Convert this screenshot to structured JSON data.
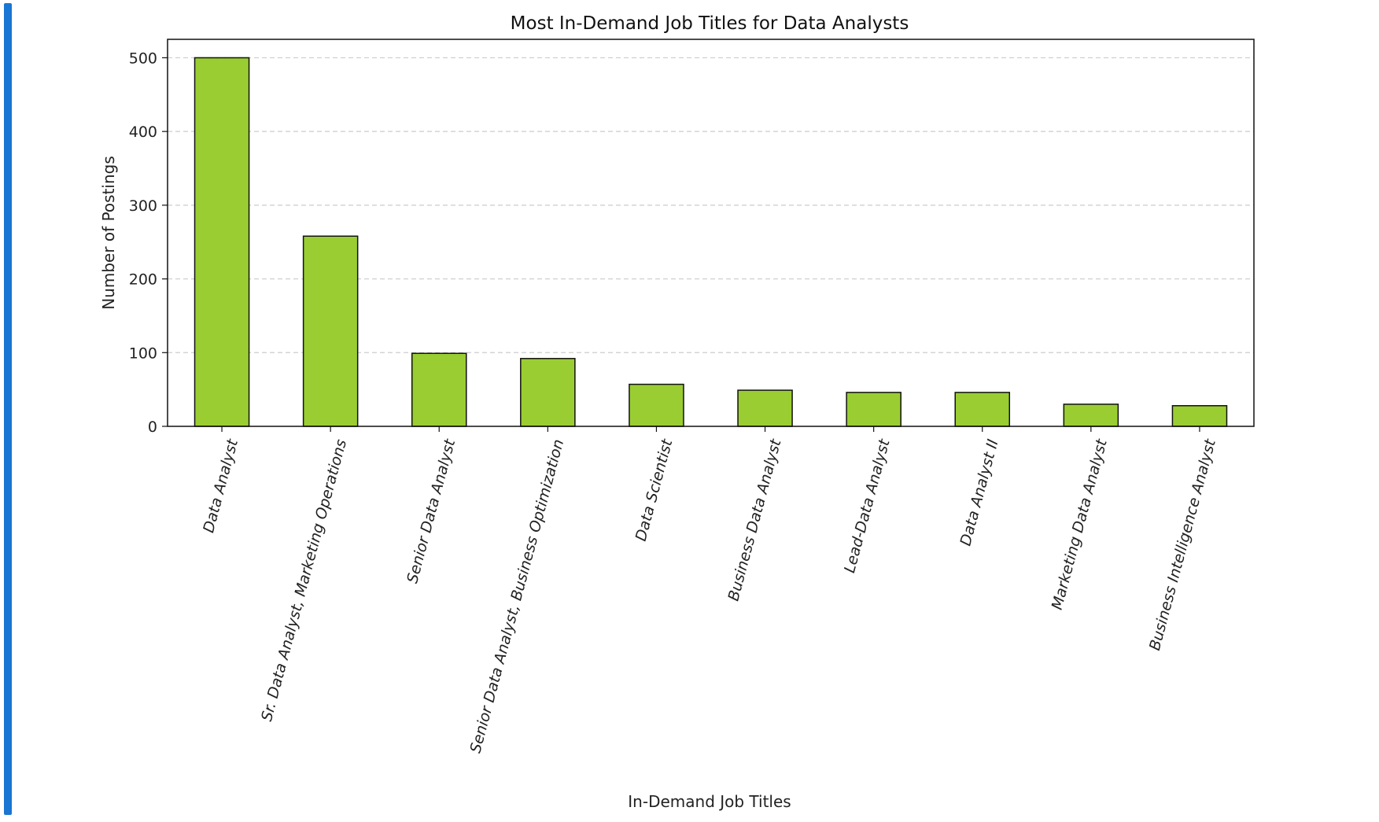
{
  "chart_data": {
    "type": "bar",
    "title": "Most In-Demand Job Titles for Data Analysts",
    "xlabel": "In-Demand Job Titles",
    "ylabel": "Number of Postings",
    "categories": [
      "Data Analyst",
      "Sr. Data Analyst, Marketing Operations",
      "Senior Data Analyst",
      "Senior Data Analyst, Business Optimization",
      "Data Scientist",
      "Business Data Analyst",
      "Lead-Data Analyst",
      "Data Analyst II",
      "Marketing Data Analyst",
      "Business Intelligence Analyst"
    ],
    "values": [
      500,
      258,
      99,
      92,
      57,
      49,
      46,
      46,
      30,
      28
    ],
    "ylim": [
      0,
      525
    ],
    "yticks": [
      0,
      100,
      200,
      300,
      400,
      500
    ],
    "grid": "y-dashed",
    "legend": "none",
    "colors": {
      "bar_fill": "#9acd32",
      "bar_edge": "#111111",
      "grid": "#cccccc",
      "cell_accent": "#1976d2"
    }
  }
}
